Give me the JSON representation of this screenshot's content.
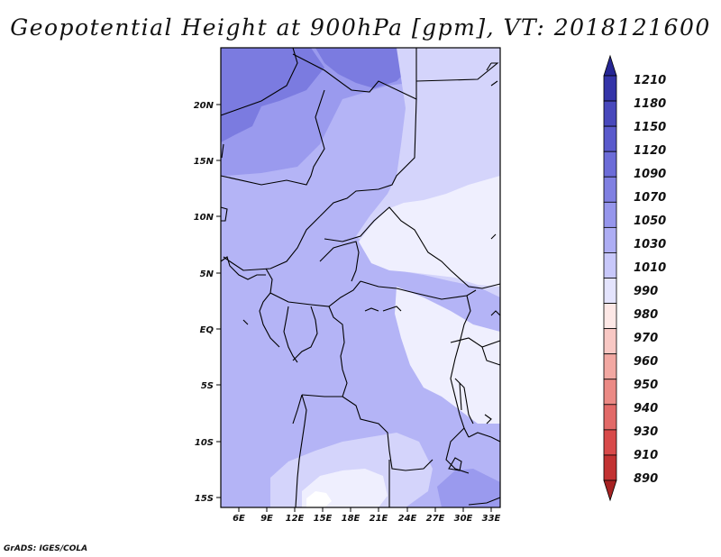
{
  "title": "Geopotential Height at 900hPa [gpm], VT: 2018121600",
  "credit": "GrADS: IGES/COLA",
  "map": {
    "y_labels": [
      "20N",
      "15N",
      "10N",
      "5N",
      "EQ",
      "5S",
      "10S",
      "15S"
    ],
    "x_labels": [
      "6E",
      "9E",
      "12E",
      "15E",
      "18E",
      "21E",
      "24E",
      "27E",
      "30E",
      "33E"
    ]
  },
  "colorbar": {
    "labels": [
      "1210",
      "1180",
      "1150",
      "1120",
      "1090",
      "1070",
      "1050",
      "1030",
      "1010",
      "990",
      "980",
      "970",
      "960",
      "950",
      "940",
      "930",
      "910",
      "890"
    ],
    "colors": [
      "#262694",
      "#3434a8",
      "#4848bc",
      "#5a5acc",
      "#6c6cd8",
      "#8080e2",
      "#9696ec",
      "#aeaef4",
      "#c8c8fa",
      "#e4e4fd",
      "#fde8e6",
      "#f8c8c4",
      "#f2a8a2",
      "#eb8a85",
      "#e26a68",
      "#d84a4a",
      "#c23232",
      "#a62222"
    ],
    "field_colors": {
      "c1090": "#7b7be0",
      "c1070": "#9a9aee",
      "c1050": "#b4b4f6",
      "c1030": "#d4d4fb",
      "c1010": "#efeffe"
    }
  }
}
